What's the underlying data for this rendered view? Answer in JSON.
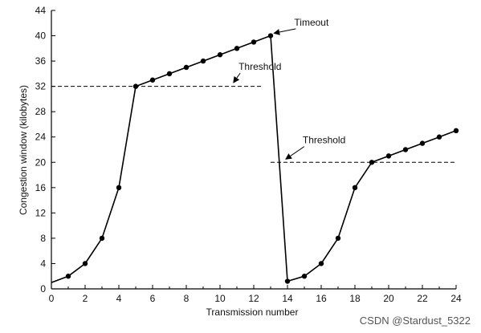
{
  "chart_data": {
    "type": "line",
    "title": "",
    "xlabel": "Transmission number",
    "ylabel": "Congestion window (kilobytes)",
    "xlim": [
      0,
      24
    ],
    "ylim": [
      0,
      44
    ],
    "xticks": [
      0,
      2,
      4,
      6,
      8,
      10,
      12,
      14,
      16,
      18,
      20,
      22,
      24
    ],
    "yticks": [
      0,
      4,
      8,
      12,
      16,
      20,
      24,
      28,
      32,
      36,
      40,
      44
    ],
    "grid": false,
    "legend": "none",
    "series": [
      {
        "x": [
          0,
          1,
          2,
          3,
          4,
          5,
          6,
          7,
          8,
          9,
          10,
          11,
          12,
          13,
          14,
          15,
          16,
          17,
          18,
          19,
          20,
          21,
          22,
          23,
          24
        ],
        "y": [
          1,
          2,
          4,
          8,
          16,
          32,
          33,
          34,
          35,
          36,
          37,
          38,
          39,
          40,
          1.2,
          2,
          4,
          8,
          16,
          20,
          21,
          22,
          23,
          24,
          25
        ],
        "markers": [
          false,
          true,
          true,
          true,
          true,
          true,
          true,
          true,
          true,
          true,
          true,
          true,
          true,
          true,
          true,
          true,
          true,
          true,
          true,
          true,
          true,
          true,
          true,
          true,
          true
        ],
        "color": "#000000"
      }
    ],
    "thresholds": [
      {
        "label": "Threshold",
        "y": 32,
        "x_start": 0,
        "x_end": 12.5,
        "label_at": [
          11.1,
          34.6
        ],
        "arrow_to": [
          10.8,
          32.6
        ]
      },
      {
        "label": "Threshold",
        "y": 20,
        "x_start": 13,
        "x_end": 24,
        "label_at": [
          14.9,
          23.0
        ],
        "arrow_to": [
          13.9,
          20.5
        ]
      }
    ],
    "annotations": [
      {
        "label": "Timeout",
        "label_at": [
          14.4,
          41.6
        ],
        "arrow_to": [
          13.2,
          40.4
        ]
      }
    ]
  },
  "watermark": "CSDN @Stardust_5322"
}
